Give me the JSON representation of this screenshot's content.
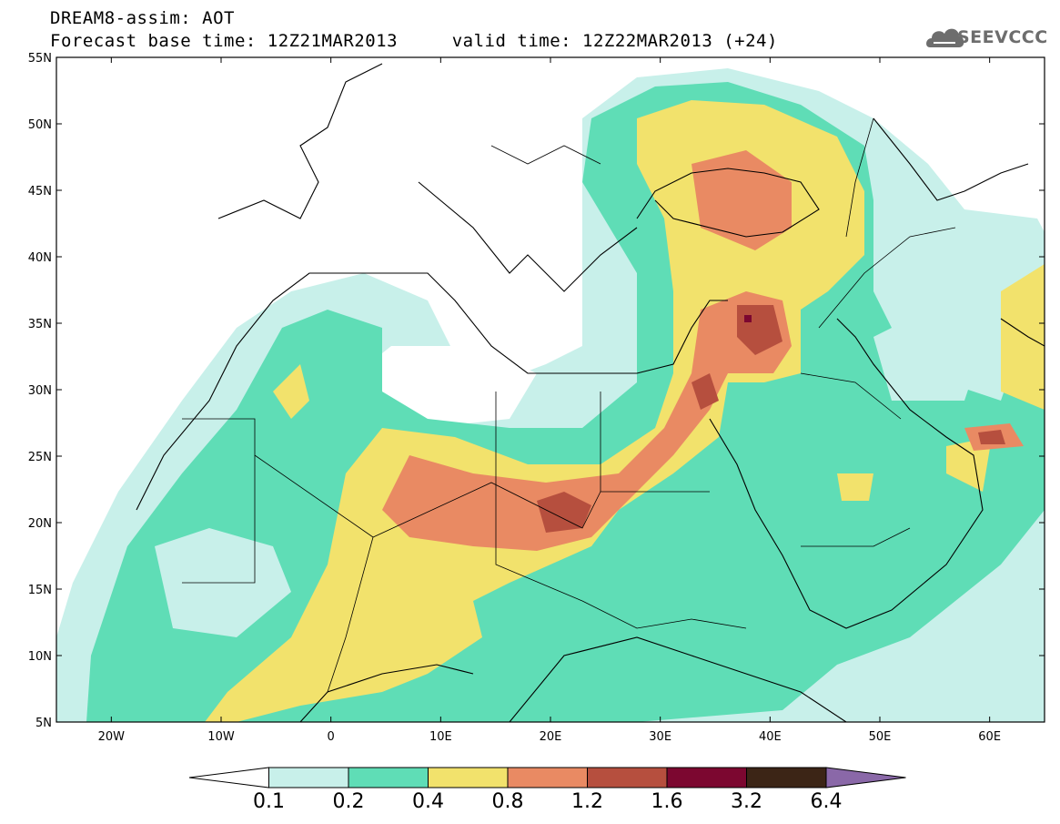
{
  "header": {
    "line1": "DREAM8-assim: AOT",
    "line2": "Forecast base time: 12Z21MAR2013     valid time: 12Z22MAR2013 (+24)"
  },
  "logo": {
    "text": "SEEVCCC",
    "icon": "cloud-icon",
    "color": "#6d6d6d"
  },
  "map": {
    "variable": "AOT",
    "lat_range": [
      5,
      55
    ],
    "lon_range": [
      -25,
      65
    ],
    "lat_labels": [
      "55N",
      "50N",
      "45N",
      "40N",
      "35N",
      "30N",
      "25N",
      "20N",
      "15N",
      "10N",
      "5N"
    ],
    "lon_labels": [
      "20W",
      "10W",
      "0",
      "10E",
      "20E",
      "30E",
      "40E",
      "50E",
      "60E"
    ],
    "lon_label_values": [
      -20,
      -10,
      0,
      10,
      20,
      30,
      40,
      50,
      60
    ],
    "lat_label_values": [
      55,
      50,
      45,
      40,
      35,
      30,
      25,
      20,
      15,
      10,
      5
    ]
  },
  "colorbar": {
    "labels": [
      "0.1",
      "0.2",
      "0.4",
      "0.8",
      "1.2",
      "1.6",
      "3.2",
      "6.4"
    ],
    "colors": [
      "#ffffff",
      "#c8f0ea",
      "#5fddb6",
      "#f2e26c",
      "#e98a63",
      "#b64f3e",
      "#7c0730",
      "#3c2516",
      "#8a68a8"
    ]
  }
}
